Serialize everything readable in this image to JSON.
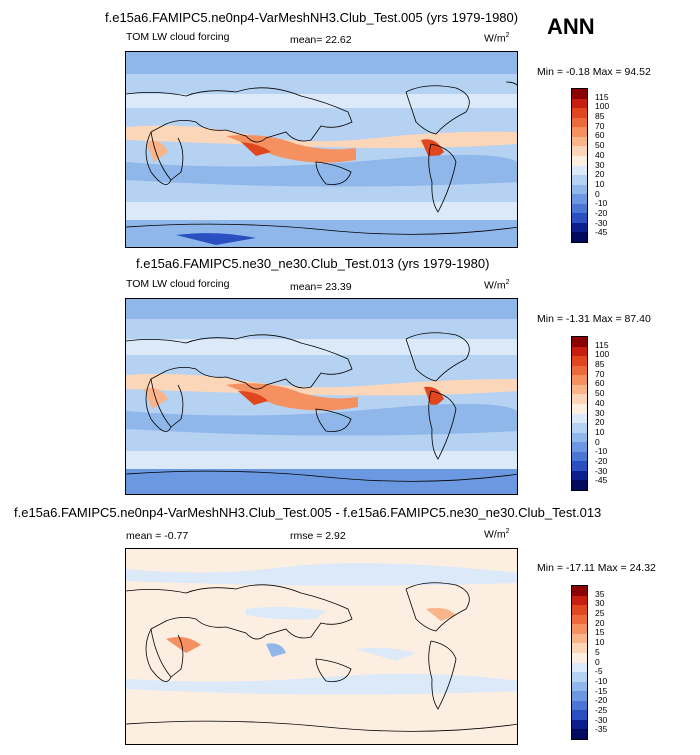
{
  "season": "ANN",
  "panels": [
    {
      "title": "f.e15a6.FAMIPC5.ne0np4-VarMeshNH3.Club_Test.005 (yrs 1979-1980)",
      "variable": "TOM LW cloud forcing",
      "stat1": "mean=  22.62",
      "stat2": "",
      "units": "W/m",
      "units_sup": "2",
      "minmax": "Min =  -0.18 Max =  94.52",
      "ticks": [
        "115",
        "100",
        "85",
        "70",
        "60",
        "50",
        "40",
        "30",
        "20",
        "10",
        "0",
        "-10",
        "-20",
        "-30",
        "-45"
      ]
    },
    {
      "title": "f.e15a6.FAMIPC5.ne30_ne30.Club_Test.013 (yrs 1979-1980)",
      "variable": "TOM LW cloud forcing",
      "stat1": "mean=  23.39",
      "stat2": "",
      "units": "W/m",
      "units_sup": "2",
      "minmax": "Min =  -1.31 Max =  87.40",
      "ticks": [
        "115",
        "100",
        "85",
        "70",
        "60",
        "50",
        "40",
        "30",
        "20",
        "10",
        "0",
        "-10",
        "-20",
        "-30",
        "-45"
      ]
    },
    {
      "title": "f.e15a6.FAMIPC5.ne0np4-VarMeshNH3.Club_Test.005 - f.e15a6.FAMIPC5.ne30_ne30.Club_Test.013",
      "variable": "",
      "stat1": "mean =  -0.77",
      "stat2": "rmse =   2.92",
      "units": "W/m",
      "units_sup": "2",
      "minmax": "Min = -17.11 Max =  24.32",
      "ticks": [
        "35",
        "30",
        "25",
        "20",
        "15",
        "10",
        "5",
        "0",
        "-5",
        "-10",
        "-15",
        "-20",
        "-25",
        "-30",
        "-35"
      ]
    }
  ],
  "colors": {
    "abs_scale": [
      "#8b0000",
      "#c81e10",
      "#e0471f",
      "#ee6a3a",
      "#f59060",
      "#f9b48a",
      "#fcd6b8",
      "#fdeee2",
      "#dbe9f8",
      "#b6d2f2",
      "#8fb7ea",
      "#6b98e0",
      "#4a76d4",
      "#2a4fc0",
      "#0b1f8f",
      "#020a5e"
    ],
    "diff_scale": [
      "#8b0000",
      "#c81e10",
      "#e0471f",
      "#ee6a3a",
      "#f59060",
      "#f9b48a",
      "#fcd6b8",
      "#fdeee2",
      "#dbe9f8",
      "#b6d2f2",
      "#8fb7ea",
      "#6b98e0",
      "#4a76d4",
      "#2a4fc0",
      "#0b1f8f",
      "#020a5e"
    ]
  }
}
